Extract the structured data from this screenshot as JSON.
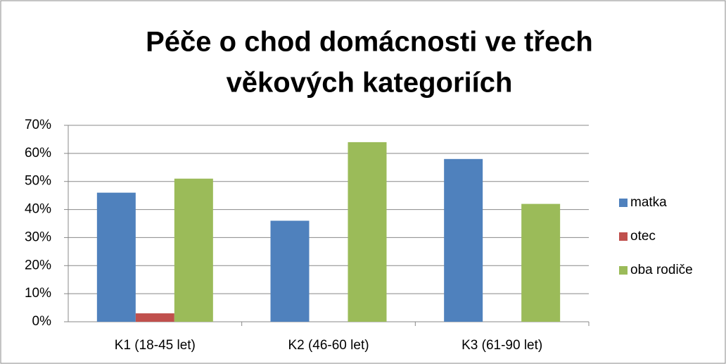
{
  "chart_data": {
    "type": "bar",
    "title": [
      "Péče o chod domácnosti ve třech",
      "věkových kategoriích"
    ],
    "categories": [
      "K1 (18-45 let)",
      "K2 (46-60 let)",
      "K3 (61-90 let)"
    ],
    "series": [
      {
        "name": "matka",
        "color": "#4f81bd",
        "values": [
          46,
          36,
          58
        ]
      },
      {
        "name": "otec",
        "color": "#c0504d",
        "values": [
          3,
          0,
          0
        ]
      },
      {
        "name": "oba rodiče",
        "color": "#9bbb59",
        "values": [
          51,
          64,
          42
        ]
      }
    ],
    "ylim": [
      0,
      70
    ],
    "yticks": [
      {
        "value": 0,
        "label": "0%"
      },
      {
        "value": 10,
        "label": "10%"
      },
      {
        "value": 20,
        "label": "20%"
      },
      {
        "value": 30,
        "label": "30%"
      },
      {
        "value": 40,
        "label": "40%"
      },
      {
        "value": 50,
        "label": "50%"
      },
      {
        "value": 60,
        "label": "60%"
      },
      {
        "value": 70,
        "label": "70%"
      }
    ],
    "grid": true,
    "legend": "right"
  }
}
